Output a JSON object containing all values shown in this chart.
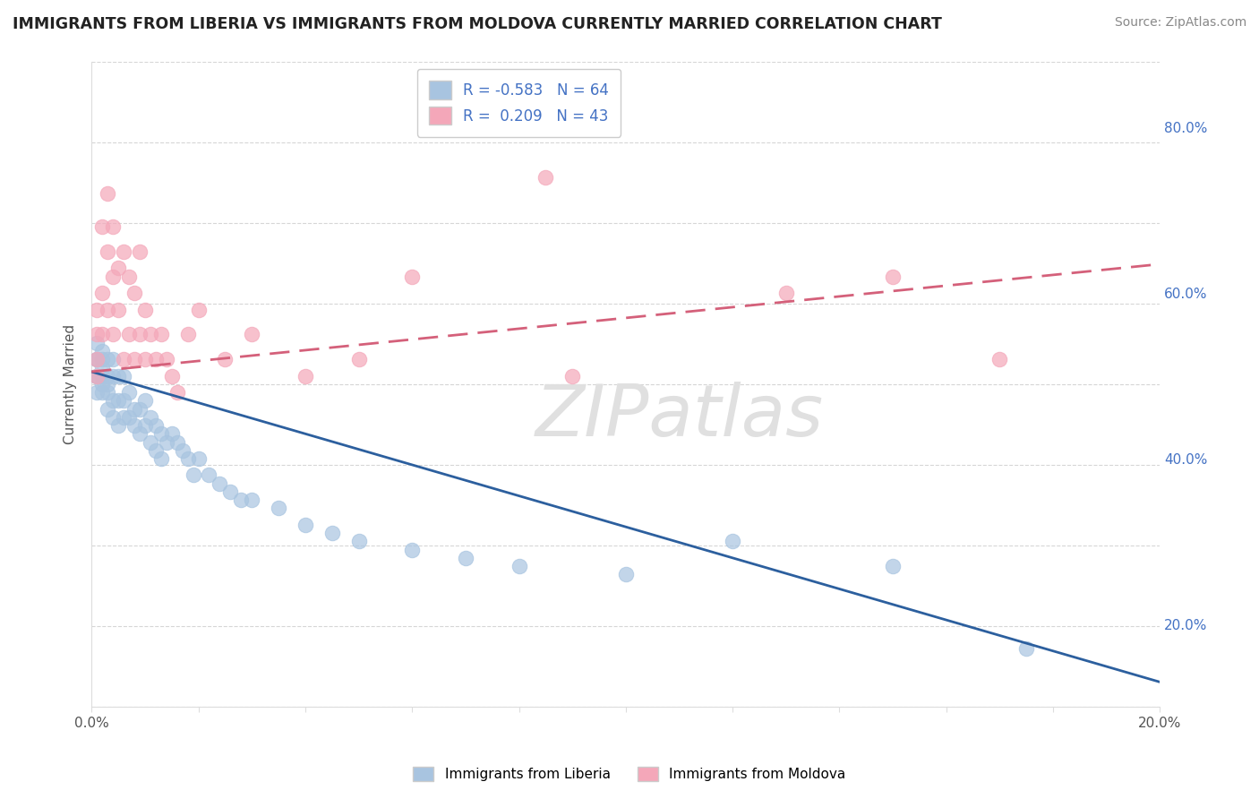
{
  "title": "IMMIGRANTS FROM LIBERIA VS IMMIGRANTS FROM MOLDOVA CURRENTLY MARRIED CORRELATION CHART",
  "source": "Source: ZipAtlas.com",
  "ylabel": "Currently Married",
  "xlim": [
    0.0,
    0.2
  ],
  "ylim": [
    0.1,
    0.88
  ],
  "right_yticks": [
    0.2,
    0.4,
    0.6,
    0.8
  ],
  "right_ytick_labels": [
    "20.0%",
    "40.0%",
    "60.0%",
    "80.0%"
  ],
  "liberia_R": -0.583,
  "liberia_N": 64,
  "moldova_R": 0.209,
  "moldova_N": 43,
  "liberia_color": "#a8c4e0",
  "moldova_color": "#f4a7b9",
  "liberia_line_color": "#2c5f9e",
  "moldova_line_color": "#d4607a",
  "watermark": "ZIPatlas",
  "background_color": "#ffffff",
  "liberia_line_x0": 0.0,
  "liberia_line_y0": 0.505,
  "liberia_line_x1": 0.2,
  "liberia_line_y1": 0.13,
  "moldova_line_x0": 0.0,
  "moldova_line_y0": 0.505,
  "moldova_line_x1": 0.2,
  "moldova_line_y1": 0.635,
  "liberia_x": [
    0.001,
    0.001,
    0.001,
    0.001,
    0.001,
    0.001,
    0.002,
    0.002,
    0.002,
    0.002,
    0.002,
    0.002,
    0.003,
    0.003,
    0.003,
    0.003,
    0.003,
    0.004,
    0.004,
    0.004,
    0.004,
    0.005,
    0.005,
    0.005,
    0.006,
    0.006,
    0.006,
    0.007,
    0.007,
    0.008,
    0.008,
    0.009,
    0.009,
    0.01,
    0.01,
    0.011,
    0.011,
    0.012,
    0.012,
    0.013,
    0.013,
    0.014,
    0.015,
    0.016,
    0.017,
    0.018,
    0.019,
    0.02,
    0.022,
    0.024,
    0.026,
    0.028,
    0.03,
    0.035,
    0.04,
    0.045,
    0.05,
    0.06,
    0.07,
    0.08,
    0.1,
    0.12,
    0.15,
    0.175
  ],
  "liberia_y": [
    0.54,
    0.52,
    0.5,
    0.48,
    0.52,
    0.5,
    0.53,
    0.51,
    0.49,
    0.52,
    0.48,
    0.5,
    0.5,
    0.48,
    0.46,
    0.52,
    0.49,
    0.5,
    0.47,
    0.52,
    0.45,
    0.5,
    0.47,
    0.44,
    0.5,
    0.47,
    0.45,
    0.48,
    0.45,
    0.46,
    0.44,
    0.46,
    0.43,
    0.47,
    0.44,
    0.45,
    0.42,
    0.44,
    0.41,
    0.43,
    0.4,
    0.42,
    0.43,
    0.42,
    0.41,
    0.4,
    0.38,
    0.4,
    0.38,
    0.37,
    0.36,
    0.35,
    0.35,
    0.34,
    0.32,
    0.31,
    0.3,
    0.29,
    0.28,
    0.27,
    0.26,
    0.3,
    0.27,
    0.17
  ],
  "moldova_x": [
    0.001,
    0.001,
    0.001,
    0.001,
    0.002,
    0.002,
    0.002,
    0.003,
    0.003,
    0.003,
    0.004,
    0.004,
    0.004,
    0.005,
    0.005,
    0.006,
    0.006,
    0.007,
    0.007,
    0.008,
    0.008,
    0.009,
    0.009,
    0.01,
    0.01,
    0.011,
    0.012,
    0.013,
    0.014,
    0.015,
    0.016,
    0.018,
    0.02,
    0.025,
    0.03,
    0.04,
    0.05,
    0.06,
    0.085,
    0.09,
    0.13,
    0.15,
    0.17
  ],
  "moldova_y": [
    0.52,
    0.55,
    0.58,
    0.5,
    0.6,
    0.55,
    0.68,
    0.65,
    0.72,
    0.58,
    0.62,
    0.68,
    0.55,
    0.63,
    0.58,
    0.65,
    0.52,
    0.62,
    0.55,
    0.6,
    0.52,
    0.65,
    0.55,
    0.58,
    0.52,
    0.55,
    0.52,
    0.55,
    0.52,
    0.5,
    0.48,
    0.55,
    0.58,
    0.52,
    0.55,
    0.5,
    0.52,
    0.62,
    0.74,
    0.5,
    0.6,
    0.62,
    0.52
  ]
}
